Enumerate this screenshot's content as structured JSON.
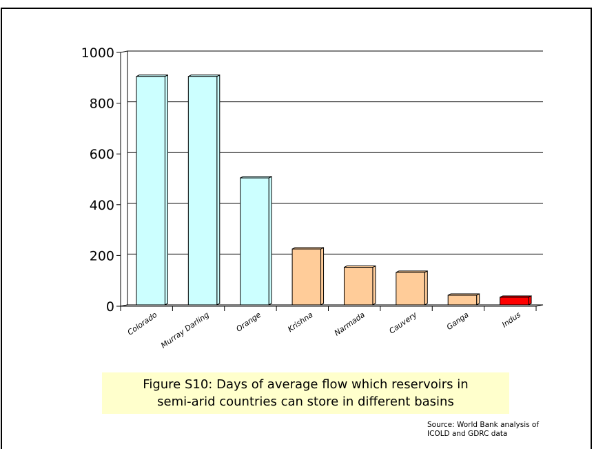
{
  "chart_data": {
    "type": "bar",
    "categories": [
      "Colorado",
      "Murray Darling",
      "Orange",
      "Krishna",
      "Narmada",
      "Cauvery",
      "Ganga",
      "Indus"
    ],
    "values": [
      900,
      900,
      500,
      220,
      148,
      128,
      38,
      30
    ],
    "bar_colors": [
      "#ccffff",
      "#ccffff",
      "#ccffff",
      "#ffcc99",
      "#ffcc99",
      "#ffcc99",
      "#ffcc99",
      "#ff0000"
    ],
    "ylim": [
      0,
      1000
    ],
    "yticks": [
      0,
      200,
      400,
      600,
      800,
      1000
    ],
    "grid": true,
    "xlabel": "",
    "ylabel": ""
  },
  "caption": {
    "line1": "Figure S10: Days of average flow which reservoirs in",
    "line2": "semi-arid countries can store in different basins"
  },
  "source": {
    "line1": "Source: World Bank analysis of",
    "line2": "ICOLD and GDRC data"
  },
  "colors": {
    "caption_background": "#ffffcc",
    "gridline": "#000000"
  }
}
